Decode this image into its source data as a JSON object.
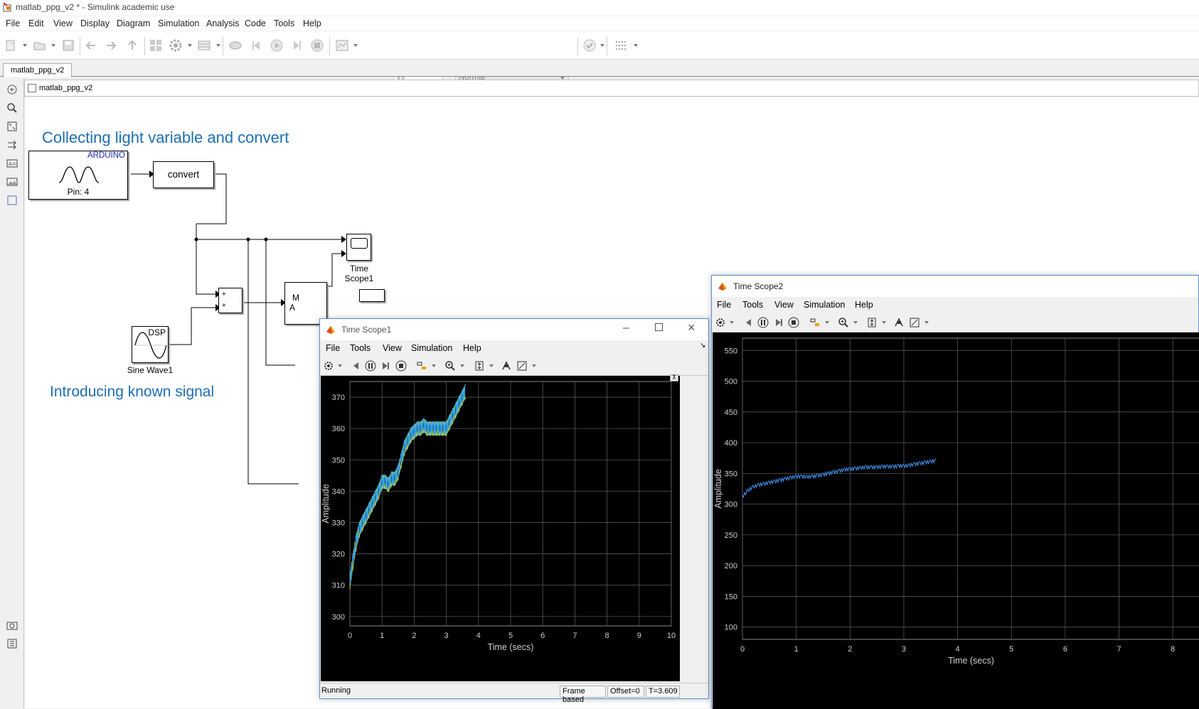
{
  "window": {
    "title": "matlab_ppg_v2 * - Simulink academic use"
  },
  "menu": [
    "File",
    "Edit",
    "View",
    "Display",
    "Diagram",
    "Simulation",
    "Analysis",
    "Code",
    "Tools",
    "Help"
  ],
  "toolbar": {
    "stop_time": "inf",
    "sim_mode": "Normal"
  },
  "tabs": [
    "matlab_ppg_v2"
  ],
  "breadcrumb": "matlab_ppg_v2",
  "model": {
    "annotations": [
      "Collecting light variable and convert",
      "Introducing known signal"
    ],
    "arduino_block": {
      "header": "ARDUINO",
      "pin": "Pin: 4"
    },
    "convert_block": "convert",
    "sum_signs": [
      "+",
      "+"
    ],
    "sine_block": {
      "header": "DSP",
      "name": "Sine Wave1"
    },
    "scope1_block": {
      "line1": "Time",
      "line2": "Scope1"
    },
    "partial_block": {
      "line1": "M",
      "line2": "A"
    }
  },
  "scope1": {
    "title": "Time Scope1",
    "menu": [
      "File",
      "Tools",
      "View",
      "Simulation",
      "Help"
    ],
    "status": "Running",
    "status_cells": [
      "Frame based",
      "Offset=0",
      "T=3.609"
    ],
    "ylabel": "Amplitude",
    "xlabel": "Time (secs)"
  },
  "scope2": {
    "title": "Time Scope2",
    "menu": [
      "File",
      "Tools",
      "View",
      "Simulation",
      "Help"
    ],
    "ylabel": "Amplitude",
    "xlabel": "Time (secs)"
  },
  "colors": {
    "annotation": "#1f6eb3",
    "scope_bg": "#000000",
    "trace1": "#2a9df4",
    "trace1_alt": "#e8e800",
    "trace2": "#3c8ee8"
  },
  "chart_data": [
    {
      "type": "line",
      "title": "",
      "xlabel": "Time (secs)",
      "ylabel": "Amplitude",
      "xlim": [
        0,
        10
      ],
      "ylim": [
        297,
        375
      ],
      "xticks": [
        0,
        1,
        2,
        3,
        4,
        5,
        6,
        7,
        8,
        9,
        10
      ],
      "yticks": [
        300,
        310,
        320,
        330,
        340,
        350,
        360,
        370
      ],
      "grid": true,
      "series": [
        {
          "x": [
            0,
            0.1,
            0.2,
            0.3,
            0.4,
            0.5,
            0.6,
            0.7,
            0.8,
            0.9,
            1.0,
            1.1,
            1.2,
            1.3,
            1.4,
            1.5,
            1.6,
            1.7,
            1.8,
            1.9,
            2.0,
            2.1,
            2.2,
            2.3,
            2.4,
            2.5,
            2.6,
            2.7,
            2.8,
            2.9,
            3.0,
            3.1,
            3.2,
            3.3,
            3.4,
            3.5,
            3.6
          ],
          "y": [
            311,
            318,
            324,
            328,
            330,
            332,
            334,
            336,
            338,
            340,
            343,
            343,
            342,
            344,
            344,
            346,
            350,
            354,
            356,
            358,
            359,
            360,
            360,
            361,
            360,
            360,
            360,
            360,
            360,
            360,
            360,
            362,
            364,
            366,
            368,
            370,
            372
          ]
        }
      ]
    },
    {
      "type": "line",
      "title": "",
      "xlabel": "Time (secs)",
      "ylabel": "Amplitude",
      "xlim": [
        0,
        8.5
      ],
      "ylim": [
        80,
        570
      ],
      "xticks": [
        0,
        1,
        2,
        3,
        4,
        5,
        6,
        7,
        8
      ],
      "yticks": [
        100,
        150,
        200,
        250,
        300,
        350,
        400,
        450,
        500,
        550
      ],
      "grid": true,
      "series": [
        {
          "x": [
            0,
            0.1,
            0.2,
            0.3,
            0.4,
            0.5,
            0.6,
            0.7,
            0.8,
            0.9,
            1.0,
            1.1,
            1.2,
            1.3,
            1.4,
            1.5,
            1.6,
            1.7,
            1.8,
            1.9,
            2.0,
            2.1,
            2.2,
            2.3,
            2.4,
            2.5,
            2.6,
            2.7,
            2.8,
            2.9,
            3.0,
            3.1,
            3.2,
            3.3,
            3.4,
            3.5,
            3.6
          ],
          "y": [
            312,
            322,
            328,
            331,
            333,
            335,
            337,
            339,
            341,
            343,
            345,
            345,
            344,
            345,
            346,
            348,
            350,
            352,
            354,
            356,
            357,
            358,
            359,
            360,
            360,
            360,
            361,
            361,
            361,
            362,
            362,
            363,
            365,
            366,
            368,
            369,
            371
          ]
        }
      ]
    }
  ]
}
